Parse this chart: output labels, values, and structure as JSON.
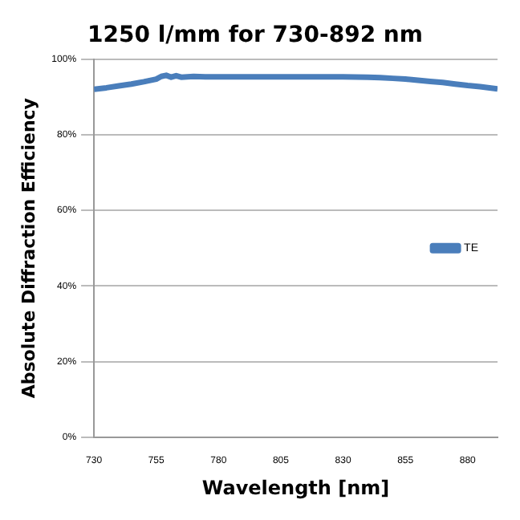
{
  "chart_data": {
    "type": "line",
    "title": "1250 l/mm for 730-892 nm",
    "xlabel": "Wavelength [nm]",
    "ylabel": "Absolute Diffraction Efficiency",
    "x": [
      730,
      735,
      740,
      745,
      750,
      755,
      757,
      759,
      761,
      763,
      765,
      770,
      775,
      780,
      790,
      800,
      810,
      820,
      830,
      840,
      845,
      850,
      855,
      860,
      865,
      870,
      875,
      880,
      885,
      892
    ],
    "series": [
      {
        "name": "TE",
        "color": "#4a7ebb",
        "values": [
          92,
          92.4,
          92.9,
          93.4,
          94,
          94.7,
          95.4,
          95.7,
          95.2,
          95.6,
          95.2,
          95.4,
          95.3,
          95.3,
          95.3,
          95.3,
          95.3,
          95.3,
          95.3,
          95.2,
          95.1,
          94.9,
          94.7,
          94.4,
          94.1,
          93.8,
          93.4,
          93,
          92.7,
          92.1
        ]
      }
    ],
    "xlim": [
      730,
      892
    ],
    "xticks": [
      730,
      755,
      780,
      805,
      830,
      855,
      880
    ],
    "ylim": [
      0,
      100
    ],
    "yticks": [
      {
        "value": 0,
        "label": "0%"
      },
      {
        "value": 20,
        "label": "20%"
      },
      {
        "value": 40,
        "label": "40%"
      },
      {
        "value": 60,
        "label": "60%"
      },
      {
        "value": 80,
        "label": "80%"
      },
      {
        "value": 100,
        "label": "100%"
      }
    ],
    "grid": "y",
    "legend": "right",
    "marker": "none",
    "line_style": "solid"
  }
}
